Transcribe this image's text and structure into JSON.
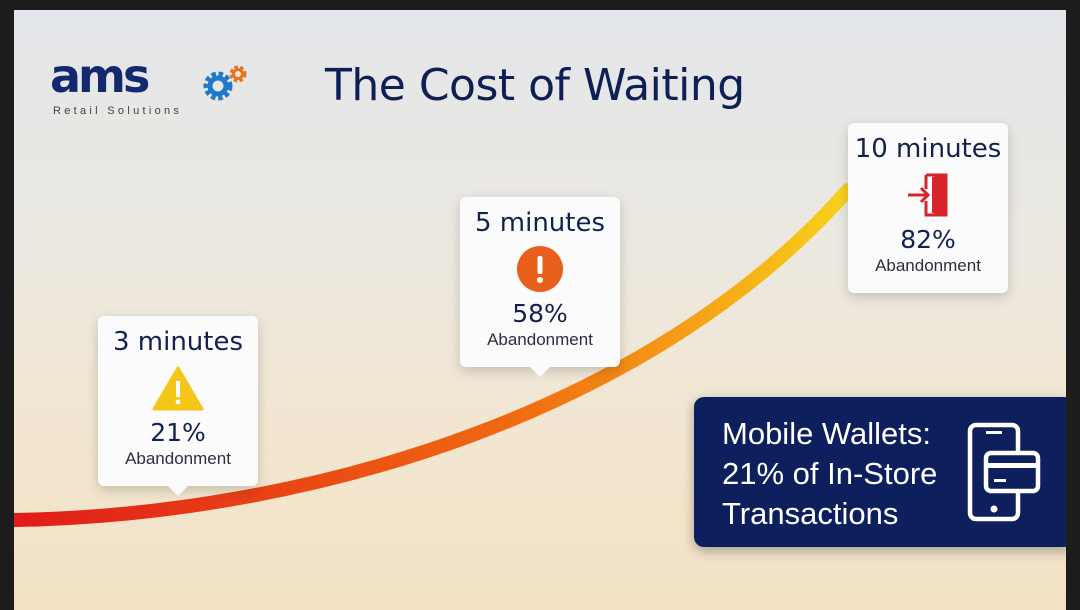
{
  "logo": {
    "brand": "ams",
    "tagline": "Retail Solutions"
  },
  "title": "The Cost of Waiting",
  "milestones": [
    {
      "time": "3 minutes",
      "percent": "21%",
      "label": "Abandonment",
      "icon": "warning-triangle-icon",
      "icon_color": "#f5c518"
    },
    {
      "time": "5 minutes",
      "percent": "58%",
      "label": "Abandonment",
      "icon": "exclamation-circle-icon",
      "icon_color": "#e8601c"
    },
    {
      "time": "10 minutes",
      "percent": "82%",
      "label": "Abandonment",
      "icon": "exit-door-icon",
      "icon_color": "#d8232a"
    }
  ],
  "callout": {
    "line1": "Mobile Wallets:",
    "line2": "21% of In-Store",
    "line3": "Transactions",
    "icon": "phone-card-icon",
    "background": "#0d1f5c"
  },
  "curve_colors": [
    "#e01b1b",
    "#f06a10",
    "#f8d21a"
  ]
}
